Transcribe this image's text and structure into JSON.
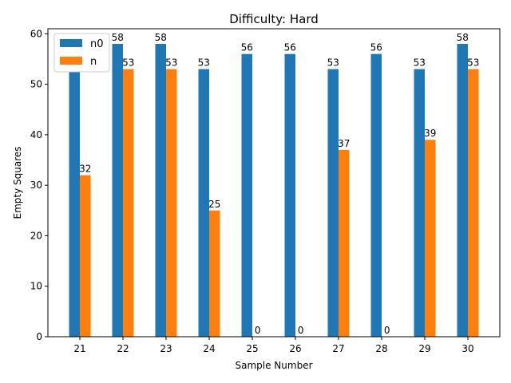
{
  "chart_data": {
    "type": "bar",
    "title": "Difficulty: Hard",
    "xlabel": "Sample Number",
    "ylabel": "Empty Squares",
    "categories": [
      "21",
      "22",
      "23",
      "24",
      "25",
      "26",
      "27",
      "28",
      "29",
      "30"
    ],
    "series": [
      {
        "name": "n0",
        "color": "#1f77b4",
        "values": [
          53,
          58,
          58,
          53,
          56,
          56,
          53,
          56,
          53,
          58
        ]
      },
      {
        "name": "n",
        "color": "#ff7f0e",
        "values": [
          32,
          53,
          53,
          25,
          0,
          0,
          37,
          0,
          39,
          53
        ]
      }
    ],
    "ylim": [
      0,
      61
    ],
    "yticks": [
      0,
      10,
      20,
      30,
      40,
      50,
      60
    ],
    "grid": false,
    "legend": "top-left"
  }
}
